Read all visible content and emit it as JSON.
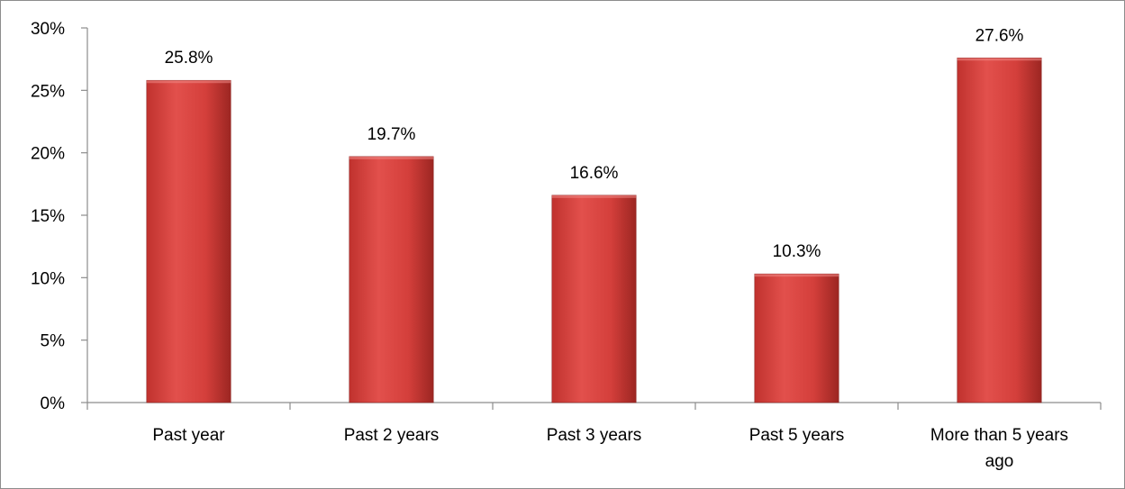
{
  "chart_data": {
    "type": "bar",
    "categories": [
      "Past year",
      "Past 2 years",
      "Past 3 years",
      "Past 5 years",
      "More than 5 years ago"
    ],
    "category_lines": [
      [
        "Past year"
      ],
      [
        "Past 2 years"
      ],
      [
        "Past 3 years"
      ],
      [
        "Past 5 years"
      ],
      [
        "More than 5 years",
        "ago"
      ]
    ],
    "values": [
      25.8,
      19.7,
      16.6,
      10.3,
      27.6
    ],
    "value_labels": [
      "25.8%",
      "19.7%",
      "16.6%",
      "10.3%",
      "27.6%"
    ],
    "yticks": [
      "0%",
      "5%",
      "10%",
      "15%",
      "20%",
      "25%",
      "30%"
    ],
    "ylim": [
      0,
      30
    ],
    "grid": false,
    "legend": "none",
    "title": "",
    "xlabel": "",
    "ylabel": "",
    "colors": {
      "bar_light": "#e2504c",
      "bar_mid": "#d43f3b",
      "bar_dark": "#9c2622",
      "axis": "#8c8c8c"
    }
  }
}
